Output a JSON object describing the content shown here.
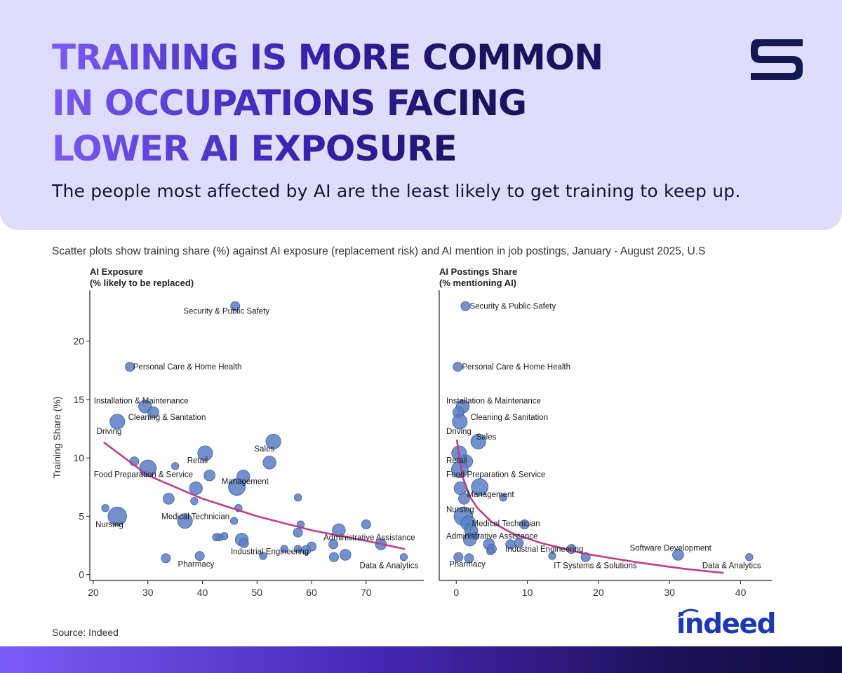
{
  "header": {
    "title_lines": [
      "TRAINING IS MORE COMMON",
      "IN OCCUPATIONS FACING",
      "LOWER AI EXPOSURE"
    ],
    "subtitle": "The people most affected by AI are the least likely to get training to keep up."
  },
  "brand": {
    "logo_icon": "s-logo-icon",
    "partner_logo_text": "indeed"
  },
  "description": "Scatter plots show training share (%) against AI exposure (replacement risk) and AI mention in job postings, January - August 2025, U.S",
  "footer": {
    "source": "Source: Indeed"
  },
  "colors": {
    "point": "#5b7fc4",
    "trend": "#c23b8f",
    "banner": "#e0dcfb",
    "brand": "#1d39b0"
  },
  "chart_data": [
    {
      "type": "scatter",
      "title_lines": [
        "AI Exposure",
        "(% likely to be replaced)"
      ],
      "xlabel": "",
      "ylabel": "Training Share (%)",
      "xlim": [
        20,
        78
      ],
      "ylim": [
        -0.5,
        24
      ],
      "xticks": [
        20,
        30,
        40,
        50,
        60,
        70
      ],
      "yticks": [
        0,
        5,
        10,
        15,
        20
      ],
      "trend": {
        "x": [
          22,
          30,
          40,
          50,
          60,
          70,
          77
        ],
        "y": [
          11.3,
          8.5,
          6.5,
          5.0,
          3.8,
          2.9,
          2.2
        ]
      },
      "points": [
        {
          "x": 46,
          "y": 23.0,
          "size": 3
        },
        {
          "x": 26.7,
          "y": 17.8,
          "size": 3
        },
        {
          "x": 29.5,
          "y": 14.4,
          "size": 5
        },
        {
          "x": 31,
          "y": 13.9,
          "size": 4
        },
        {
          "x": 24.4,
          "y": 13.1,
          "size": 6
        },
        {
          "x": 53,
          "y": 11.4,
          "size": 6
        },
        {
          "x": 40.5,
          "y": 10.4,
          "size": 6
        },
        {
          "x": 27.5,
          "y": 9.7,
          "size": 3
        },
        {
          "x": 52.3,
          "y": 9.6,
          "size": 5
        },
        {
          "x": 35,
          "y": 9.3,
          "size": 2
        },
        {
          "x": 30,
          "y": 9.1,
          "size": 7
        },
        {
          "x": 41.3,
          "y": 8.5,
          "size": 4
        },
        {
          "x": 47.5,
          "y": 8.4,
          "size": 5
        },
        {
          "x": 38.8,
          "y": 7.4,
          "size": 5
        },
        {
          "x": 46.3,
          "y": 7.5,
          "size": 7
        },
        {
          "x": 57.5,
          "y": 6.6,
          "size": 2
        },
        {
          "x": 33.8,
          "y": 6.5,
          "size": 4
        },
        {
          "x": 38.5,
          "y": 6.3,
          "size": 2
        },
        {
          "x": 46.6,
          "y": 5.7,
          "size": 2
        },
        {
          "x": 22.2,
          "y": 5.7,
          "size": 2
        },
        {
          "x": 24.4,
          "y": 5.0,
          "size": 8
        },
        {
          "x": 36.8,
          "y": 4.6,
          "size": 6
        },
        {
          "x": 45.8,
          "y": 4.6,
          "size": 2
        },
        {
          "x": 58,
          "y": 4.3,
          "size": 2
        },
        {
          "x": 70,
          "y": 4.3,
          "size": 3
        },
        {
          "x": 65,
          "y": 3.8,
          "size": 5
        },
        {
          "x": 57.5,
          "y": 3.6,
          "size": 3
        },
        {
          "x": 44,
          "y": 3.3,
          "size": 2
        },
        {
          "x": 43.1,
          "y": 3.2,
          "size": 2
        },
        {
          "x": 42.5,
          "y": 3.2,
          "size": 2
        },
        {
          "x": 47.2,
          "y": 3.0,
          "size": 5
        },
        {
          "x": 47.6,
          "y": 2.7,
          "size": 3
        },
        {
          "x": 72.7,
          "y": 2.6,
          "size": 4
        },
        {
          "x": 64,
          "y": 2.6,
          "size": 3
        },
        {
          "x": 60,
          "y": 2.4,
          "size": 3
        },
        {
          "x": 59,
          "y": 2.1,
          "size": 3
        },
        {
          "x": 57.5,
          "y": 2.2,
          "size": 2
        },
        {
          "x": 55,
          "y": 2.2,
          "size": 2
        },
        {
          "x": 51.1,
          "y": 1.6,
          "size": 2
        },
        {
          "x": 66.2,
          "y": 1.7,
          "size": 4
        },
        {
          "x": 64.1,
          "y": 1.5,
          "size": 3
        },
        {
          "x": 39.5,
          "y": 1.6,
          "size": 3
        },
        {
          "x": 33.3,
          "y": 1.4,
          "size": 3
        },
        {
          "x": 76.9,
          "y": 1.5,
          "size": 2
        }
      ],
      "annotations": [
        {
          "text": "Security & Public Safety",
          "x": 36.5,
          "y": 22.6
        },
        {
          "text": "Personal Care & Home Health",
          "x": 27.3,
          "y": 17.8
        },
        {
          "text": "Installation & Maintenance",
          "x": 20.1,
          "y": 14.9
        },
        {
          "text": "Cleaning & Sanitation",
          "x": 26.4,
          "y": 13.5
        },
        {
          "text": "Driving",
          "x": 20.6,
          "y": 12.3
        },
        {
          "text": "Sales",
          "x": 49.5,
          "y": 10.8
        },
        {
          "text": "Retail",
          "x": 37.2,
          "y": 9.8
        },
        {
          "text": "Food Preparation & Service",
          "x": 20.1,
          "y": 8.6
        },
        {
          "text": "Management",
          "x": 43.5,
          "y": 8.0
        },
        {
          "text": "Medical Technician",
          "x": 32.5,
          "y": 5.0
        },
        {
          "text": "Nursing",
          "x": 20.4,
          "y": 4.3
        },
        {
          "text": "Administrative Assistance",
          "x": 62.2,
          "y": 3.2
        },
        {
          "text": "Industrial Engineering",
          "x": 45.2,
          "y": 2.0
        },
        {
          "text": "Pharmacy",
          "x": 35.5,
          "y": 0.9
        },
        {
          "text": "Data & Analytics",
          "x": 68.8,
          "y": 0.8
        }
      ]
    },
    {
      "type": "scatter",
      "title_lines": [
        "AI Postings Share",
        "(% mentioning AI)"
      ],
      "xlabel": "",
      "ylabel": "",
      "xlim": [
        -1.8,
        43
      ],
      "ylim": [
        -0.5,
        24
      ],
      "xticks": [
        0,
        10,
        20,
        30,
        40
      ],
      "yticks": [],
      "trend": {
        "x": [
          0.1,
          0.5,
          1,
          2,
          3,
          5,
          8,
          12,
          18,
          25,
          32,
          37.5
        ],
        "y": [
          11.5,
          9.6,
          8.2,
          6.6,
          5.7,
          4.5,
          3.5,
          2.7,
          1.8,
          1.1,
          0.5,
          0.15
        ]
      },
      "points": [
        {
          "x": 1.3,
          "y": 23.0,
          "size": 3
        },
        {
          "x": 0.2,
          "y": 17.8,
          "size": 3
        },
        {
          "x": 0.9,
          "y": 14.4,
          "size": 5
        },
        {
          "x": 0.3,
          "y": 13.9,
          "size": 4
        },
        {
          "x": 0.5,
          "y": 13.1,
          "size": 6
        },
        {
          "x": 3.1,
          "y": 11.4,
          "size": 6
        },
        {
          "x": 0.4,
          "y": 10.4,
          "size": 6
        },
        {
          "x": 1.4,
          "y": 9.7,
          "size": 5
        },
        {
          "x": 0.5,
          "y": 9.0,
          "size": 7
        },
        {
          "x": 0.6,
          "y": 7.4,
          "size": 5
        },
        {
          "x": 3.3,
          "y": 7.5,
          "size": 7
        },
        {
          "x": 6.6,
          "y": 6.6,
          "size": 2
        },
        {
          "x": 1.1,
          "y": 6.5,
          "size": 4
        },
        {
          "x": 1.0,
          "y": 5.0,
          "size": 8
        },
        {
          "x": 1.7,
          "y": 4.4,
          "size": 6
        },
        {
          "x": 9.6,
          "y": 4.3,
          "size": 3
        },
        {
          "x": 2.1,
          "y": 3.8,
          "size": 5
        },
        {
          "x": 2.7,
          "y": 3.3,
          "size": 2
        },
        {
          "x": 1.9,
          "y": 3.0,
          "size": 5
        },
        {
          "x": 4.6,
          "y": 2.6,
          "size": 4
        },
        {
          "x": 7.6,
          "y": 2.6,
          "size": 3
        },
        {
          "x": 5.0,
          "y": 2.2,
          "size": 3
        },
        {
          "x": 8.8,
          "y": 2.7,
          "size": 3
        },
        {
          "x": 4.8,
          "y": 2.0,
          "size": 2
        },
        {
          "x": 16.2,
          "y": 2.2,
          "size": 3
        },
        {
          "x": 13.5,
          "y": 1.6,
          "size": 2
        },
        {
          "x": 18.2,
          "y": 1.5,
          "size": 3
        },
        {
          "x": 31.2,
          "y": 1.7,
          "size": 4
        },
        {
          "x": 41.2,
          "y": 1.5,
          "size": 2
        },
        {
          "x": 0.3,
          "y": 1.5,
          "size": 3
        },
        {
          "x": 1.8,
          "y": 1.4,
          "size": 3
        }
      ],
      "annotations": [
        {
          "text": "Security & Public Safety",
          "x": 1.9,
          "y": 23.0
        },
        {
          "text": "Personal Care & Home Health",
          "x": 0.8,
          "y": 17.8
        },
        {
          "text": "Installation & Maintenance",
          "x": -1.4,
          "y": 14.9
        },
        {
          "text": "Cleaning & Sanitation",
          "x": 2.0,
          "y": 13.5
        },
        {
          "text": "Driving",
          "x": -1.4,
          "y": 12.3
        },
        {
          "text": "Sales",
          "x": 2.8,
          "y": 11.8
        },
        {
          "text": "Retail",
          "x": -1.4,
          "y": 9.8
        },
        {
          "text": "Food Preparation & Service",
          "x": -1.4,
          "y": 8.6
        },
        {
          "text": "Management",
          "x": 1.5,
          "y": 6.9
        },
        {
          "text": "Nursing",
          "x": -1.4,
          "y": 5.6
        },
        {
          "text": "Medical Technician",
          "x": 2.2,
          "y": 4.4
        },
        {
          "text": "Administrative Assistance",
          "x": -1.4,
          "y": 3.3
        },
        {
          "text": "Industrial Engineering",
          "x": 6.9,
          "y": 2.2
        },
        {
          "text": "Software Development",
          "x": 24.4,
          "y": 2.3
        },
        {
          "text": "Pharmacy",
          "x": -1.0,
          "y": 0.9
        },
        {
          "text": "IT Systems & Solutions",
          "x": 13.7,
          "y": 0.8
        },
        {
          "text": "Data & Analytics",
          "x": 34.6,
          "y": 0.8
        }
      ]
    }
  ]
}
